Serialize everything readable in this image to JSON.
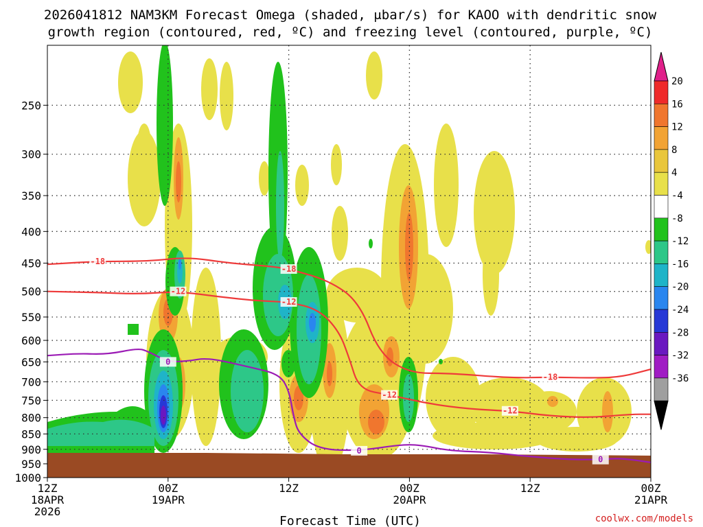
{
  "chart_data": {
    "type": "heatmap",
    "title_line1": "2026041812 NAM3KM Forecast Omega (shaded, μbar/s) for KAOO with dendritic snow",
    "title_line2": "growth region (contoured, red, ºC) and freezing level (contoured, purple, ºC)",
    "xlabel": "Forecast Time (UTC)",
    "credit": "coolwx.com/models",
    "x_ticks": [
      {
        "hour": 0,
        "l1": "12Z",
        "l2": "18APR",
        "l3": "2026"
      },
      {
        "hour": 12,
        "l1": "00Z",
        "l2": "19APR",
        "l3": ""
      },
      {
        "hour": 24,
        "l1": "12Z",
        "l2": "",
        "l3": ""
      },
      {
        "hour": 36,
        "l1": "00Z",
        "l2": "20APR",
        "l3": ""
      },
      {
        "hour": 48,
        "l1": "12Z",
        "l2": "",
        "l3": ""
      },
      {
        "hour": 60,
        "l1": "00Z",
        "l2": "21APR",
        "l3": ""
      }
    ],
    "y_ticks": [
      "250",
      "300",
      "350",
      "400",
      "450",
      "500",
      "550",
      "600",
      "650",
      "700",
      "750",
      "800",
      "850",
      "900",
      "950",
      "1000"
    ],
    "y_values": [
      250,
      300,
      350,
      400,
      450,
      500,
      550,
      600,
      650,
      700,
      750,
      800,
      850,
      900,
      950,
      1000
    ],
    "ylim": [
      200,
      1000
    ],
    "xlim": [
      0,
      60
    ],
    "colorbar": {
      "labels": [
        "20",
        "16",
        "12",
        "8",
        "4",
        "-4",
        "-8",
        "-12",
        "-16",
        "-20",
        "-24",
        "-28",
        "-32",
        "-36"
      ],
      "colors": [
        "#ef2a2a",
        "#f0762e",
        "#f2a334",
        "#e9c63b",
        "#e8e04a",
        "#ffffff",
        "#21c21c",
        "#2dc788",
        "#1fb4c8",
        "#2a86ef",
        "#2638d6",
        "#6a18c0",
        "#a01cc4",
        "#9f9f9f"
      ],
      "top_arrow_color": "#e0208a",
      "bottom_arrow_color": "#000000"
    },
    "series": [
      {
        "name": "dendritic -18C (upper)",
        "label": "-18",
        "color": "#ee3a3a",
        "points": [
          [
            0,
            452
          ],
          [
            5,
            447
          ],
          [
            10,
            447
          ],
          [
            14,
            440
          ],
          [
            18,
            450
          ],
          [
            22,
            455
          ],
          [
            24,
            460
          ],
          [
            28,
            480
          ],
          [
            31,
            520
          ],
          [
            33,
            630
          ],
          [
            36,
            678
          ],
          [
            40,
            678
          ],
          [
            46,
            690
          ],
          [
            50,
            688
          ],
          [
            54,
            690
          ],
          [
            57,
            688
          ],
          [
            60,
            668
          ]
        ]
      },
      {
        "name": "dendritic -12C",
        "label": "-12",
        "color": "#ee3a3a",
        "points": [
          [
            0,
            500
          ],
          [
            5,
            502
          ],
          [
            9,
            505
          ],
          [
            13,
            500
          ],
          [
            17,
            510
          ],
          [
            21,
            518
          ],
          [
            24,
            520
          ],
          [
            27,
            535
          ],
          [
            29,
            580
          ],
          [
            30,
            640
          ],
          [
            31,
            720
          ],
          [
            34,
            735
          ],
          [
            38,
            760
          ],
          [
            42,
            775
          ],
          [
            46,
            780
          ],
          [
            50,
            795
          ],
          [
            54,
            800
          ],
          [
            58,
            790
          ],
          [
            60,
            790
          ]
        ]
      },
      {
        "name": "freezing level 0C",
        "label": "0",
        "color": "#9b1bb5",
        "points": [
          [
            0,
            635
          ],
          [
            3,
            630
          ],
          [
            6,
            632
          ],
          [
            9,
            618
          ],
          [
            10,
            625
          ],
          [
            12,
            650
          ],
          [
            14,
            648
          ],
          [
            16,
            640
          ],
          [
            20,
            662
          ],
          [
            23,
            680
          ],
          [
            24,
            720
          ],
          [
            24.5,
            800
          ],
          [
            25,
            850
          ],
          [
            27,
            900
          ],
          [
            31,
            905
          ],
          [
            35,
            885
          ],
          [
            37,
            885
          ],
          [
            40,
            905
          ],
          [
            44,
            910
          ],
          [
            48,
            925
          ],
          [
            52,
            935
          ],
          [
            55,
            935
          ],
          [
            57,
            930
          ],
          [
            60,
            945
          ]
        ]
      }
    ],
    "dashed_levels": [
      250,
      300,
      350,
      400,
      450,
      500,
      550,
      600,
      650,
      700,
      750,
      800,
      850,
      900,
      950,
      1000
    ],
    "dashed_hours": [
      12,
      24,
      36,
      48
    ]
  }
}
